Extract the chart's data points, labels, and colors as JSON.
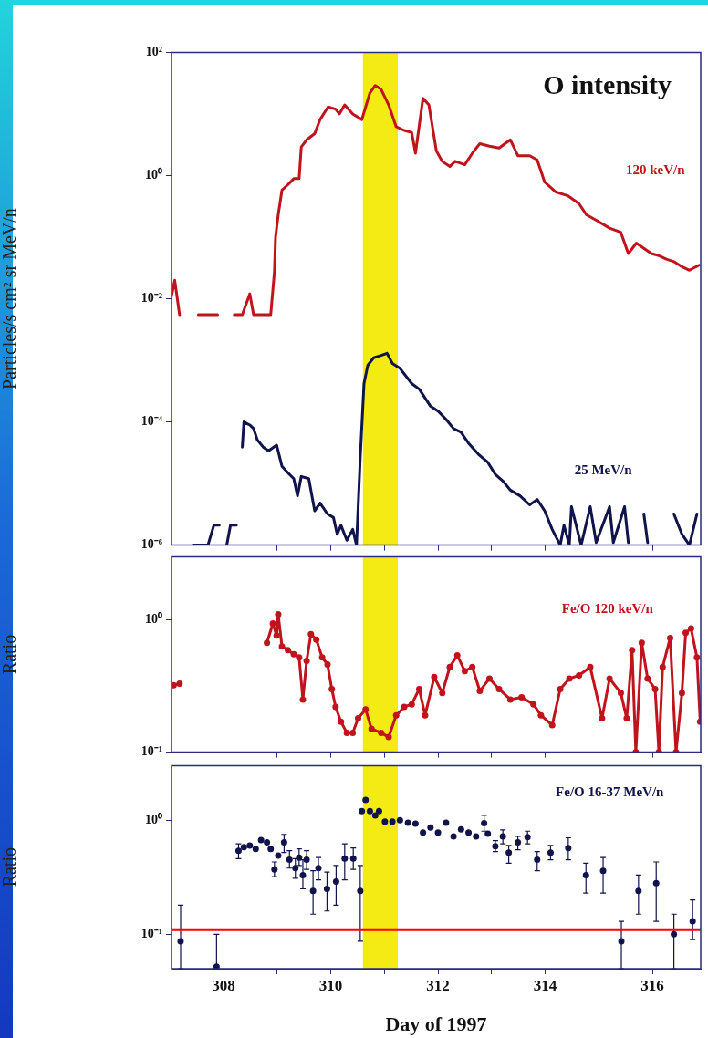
{
  "chart_data": [
    {
      "type": "line",
      "title": "O intensity",
      "ylabel": "Particles/s cm² sr MeV/n",
      "log": "y",
      "grid": false,
      "legend": false,
      "tick_labels": "y",
      "marker": "none",
      "xlim": [
        307.03,
        316.9
      ],
      "xticks": [
        308,
        {
          "value": 309,
          "label": null
        },
        310,
        {
          "value": 311,
          "label": null
        },
        312,
        {
          "value": 313,
          "label": null
        },
        314,
        {
          "value": 315,
          "label": null
        },
        316
      ],
      "ylim": [
        1e-06,
        100
      ],
      "yticks": [
        {
          "value": 100,
          "label": "10²"
        },
        {
          "value": 1,
          "label": "10⁰"
        },
        {
          "value": 0.01,
          "label": "10⁻²"
        },
        {
          "value": 0.0001,
          "label": "10⁻⁴"
        },
        {
          "value": 1e-06,
          "label": "10⁻⁶"
        }
      ],
      "bands": [
        {
          "axis": "x",
          "from": 310.6,
          "to": 311.25,
          "color": "#f5eb14"
        }
      ],
      "series": [
        {
          "name": "120 keV/n",
          "color": "#c0141c",
          "x": [
            307.03,
            307.09,
            307.18,
            307.35,
            307.53,
            307.89,
            308.05,
            308.2,
            308.35,
            308.49,
            308.56,
            308.88,
            308.95,
            308.97,
            309.02,
            309.09,
            309.2,
            309.31,
            309.41,
            309.45,
            309.55,
            309.7,
            309.8,
            309.95,
            310.09,
            310.16,
            310.26,
            310.41,
            310.58,
            310.73,
            310.83,
            310.94,
            311.08,
            311.22,
            311.37,
            311.51,
            311.58,
            311.72,
            311.83,
            311.97,
            312.08,
            312.22,
            312.32,
            312.5,
            312.64,
            312.78,
            312.96,
            313.14,
            313.35,
            313.49,
            313.71,
            313.85,
            313.99,
            314.2,
            314.42,
            314.63,
            314.77,
            314.99,
            315.2,
            315.41,
            315.55,
            315.7,
            315.84,
            315.98,
            316.12,
            316.26,
            316.4,
            316.55,
            316.69,
            316.87
          ],
          "values": [
            0.011,
            0.02,
            0.0055,
            null,
            0.0055,
            0.0055,
            null,
            0.0055,
            0.0055,
            0.012,
            0.0055,
            0.0055,
            0.028,
            0.1,
            0.23,
            0.58,
            0.71,
            0.89,
            0.89,
            2.9,
            3.8,
            4.8,
            8.1,
            13,
            12,
            10,
            14,
            10,
            8.1,
            22,
            29,
            25,
            14,
            6.2,
            5.4,
            5,
            2.3,
            18,
            14,
            2.5,
            1.7,
            1.4,
            1.7,
            1.5,
            2.3,
            3.3,
            3,
            2.8,
            3.8,
            2.1,
            2.1,
            1.8,
            0.78,
            0.54,
            0.47,
            0.35,
            0.23,
            0.18,
            0.14,
            0.12,
            0.054,
            0.08,
            0.066,
            0.054,
            0.05,
            0.044,
            0.04,
            0.033,
            0.029,
            0.035
          ]
        },
        {
          "name": "25 MeV/n",
          "color": "#10144a",
          "x": [
            307.43,
            307.71,
            307.82,
            307.92,
            308.0,
            308.06,
            308.13,
            308.24,
            308.3,
            308.35,
            308.38,
            308.49,
            308.56,
            308.63,
            308.74,
            308.84,
            308.99,
            309.09,
            309.2,
            309.31,
            309.38,
            309.45,
            309.59,
            309.7,
            309.8,
            309.94,
            310.05,
            310.12,
            310.19,
            310.3,
            310.41,
            310.48,
            310.55,
            310.62,
            310.69,
            310.8,
            310.94,
            311.05,
            311.15,
            311.29,
            311.51,
            311.65,
            311.86,
            312.0,
            312.15,
            312.29,
            312.43,
            312.57,
            312.75,
            312.93,
            313.07,
            313.21,
            313.35,
            313.53,
            313.71,
            313.85,
            313.99,
            314.13,
            314.28,
            314.35,
            314.45,
            314.49,
            314.67,
            314.84,
            314.95,
            315.2,
            315.27,
            315.48,
            315.55,
            315.7,
            315.84,
            315.91,
            316.2,
            316.4,
            316.55,
            316.69,
            316.83
          ],
          "values": [
            1e-06,
            1e-06,
            2.1e-06,
            2.1e-06,
            null,
            1e-06,
            2.1e-06,
            2.1e-06,
            null,
            3.9e-05,
            0.0001,
            8.9e-05,
            7.8e-05,
            5.1e-05,
            3.9e-05,
            3.4e-05,
            4.2e-05,
            1.9e-05,
            1.5e-05,
            1.2e-05,
            6.3e-06,
            1.3e-05,
            1.2e-05,
            3.6e-06,
            4.8e-06,
            3.2e-06,
            2.8e-06,
            1.5e-06,
            2.1e-06,
            1.2e-06,
            1.8e-06,
            1e-06,
            2.6e-05,
            0.00042,
            0.00083,
            0.0011,
            0.0012,
            0.0013,
            0.00089,
            0.00074,
            0.00042,
            0.00034,
            0.00018,
            0.00015,
            0.00011,
            7.8e-05,
            6.8e-05,
            4.5e-05,
            3e-05,
            2.2e-05,
            1.4e-05,
            1.1e-05,
            7.8e-06,
            6.3e-06,
            4.5e-06,
            5.5e-06,
            3.6e-06,
            1.8e-06,
            1e-06,
            2.1e-06,
            1e-06,
            4.2e-06,
            1e-06,
            4.2e-06,
            1.1e-06,
            4.2e-06,
            1.1e-06,
            4.2e-06,
            1.1e-06,
            null,
            3.2e-06,
            1.1e-06,
            null,
            3.2e-06,
            1.5e-06,
            1e-06,
            3.2e-06
          ]
        }
      ]
    },
    {
      "type": "line",
      "ylabel": "Ratio",
      "log": "y",
      "grid": false,
      "legend": false,
      "tick_labels": "y",
      "marker": "circle",
      "xlim": [
        307.03,
        316.9
      ],
      "xticks": [
        308,
        {
          "value": 309,
          "label": null
        },
        310,
        {
          "value": 311,
          "label": null
        },
        312,
        {
          "value": 313,
          "label": null
        },
        314,
        {
          "value": 315,
          "label": null
        },
        316
      ],
      "ylim": [
        0.1,
        3
      ],
      "yticks": [
        {
          "value": 1,
          "label": "10⁰"
        },
        {
          "value": 0.1,
          "label": "10⁻¹"
        }
      ],
      "bands": [
        {
          "axis": "x",
          "from": 310.6,
          "to": 311.25,
          "color": "#f5eb14"
        }
      ],
      "series": [
        {
          "name": "Fe/O 120 keV/n",
          "color": "#c0141c",
          "x": [
            307.07,
            307.18,
            308.0,
            308.81,
            308.92,
            308.99,
            309.02,
            309.09,
            309.2,
            309.31,
            309.41,
            309.48,
            309.55,
            309.63,
            309.73,
            309.84,
            309.94,
            310.02,
            310.09,
            310.19,
            310.3,
            310.41,
            310.51,
            310.65,
            310.76,
            310.94,
            311.08,
            311.22,
            311.37,
            311.51,
            311.65,
            311.76,
            311.93,
            312.08,
            312.22,
            312.36,
            312.5,
            312.64,
            312.78,
            312.96,
            313.14,
            313.35,
            313.56,
            313.78,
            313.92,
            314.13,
            314.28,
            314.45,
            314.63,
            314.84,
            315.06,
            315.2,
            315.41,
            315.52,
            315.62,
            315.69,
            315.8,
            315.91,
            316.05,
            316.12,
            316.19,
            316.33,
            316.44,
            316.55,
            316.62,
            316.72,
            316.83,
            316.89
          ],
          "values": [
            0.32,
            0.33,
            null,
            0.67,
            0.94,
            0.76,
            1.1,
            0.63,
            0.59,
            0.55,
            0.52,
            0.25,
            0.49,
            0.78,
            0.71,
            0.52,
            0.46,
            0.3,
            0.22,
            0.17,
            0.14,
            0.14,
            0.18,
            0.21,
            0.15,
            0.14,
            0.13,
            0.19,
            0.22,
            0.23,
            0.3,
            0.19,
            0.37,
            0.28,
            0.44,
            0.54,
            0.41,
            0.44,
            0.29,
            0.36,
            0.3,
            0.25,
            0.26,
            0.23,
            0.19,
            0.16,
            0.3,
            0.36,
            0.38,
            0.44,
            0.18,
            0.36,
            0.28,
            0.18,
            0.59,
            0.1,
            0.67,
            0.36,
            0.3,
            0.1,
            0.44,
            0.73,
            0.1,
            0.28,
            0.8,
            0.86,
            0.52,
            0.17
          ]
        }
      ]
    },
    {
      "type": "scatter",
      "ylabel": "Ratio",
      "xlabel": "Day of 1997",
      "log": "y",
      "grid": false,
      "legend": false,
      "marker": "circle",
      "xlim": [
        307.03,
        316.9
      ],
      "xticks": [
        308,
        {
          "value": 309,
          "label": null
        },
        310,
        {
          "value": 311,
          "label": null
        },
        312,
        {
          "value": 313,
          "label": null
        },
        314,
        {
          "value": 315,
          "label": null
        },
        316
      ],
      "ylim": [
        0.05,
        3
      ],
      "yticks": [
        {
          "value": 1,
          "label": "10⁰"
        },
        {
          "value": 0.1,
          "label": "10⁻¹"
        }
      ],
      "bands": [
        {
          "axis": "x",
          "from": 310.6,
          "to": 311.25,
          "color": "#f5eb14"
        }
      ],
      "ref_lines": [
        {
          "axis": "y",
          "value": 0.11,
          "color": "#ff0000"
        }
      ],
      "series": [
        {
          "name": "Fe/O 16-37 MeV/n",
          "color": "#10144a",
          "x": [
            307.2,
            307.87,
            308.28,
            308.38,
            308.49,
            308.6,
            308.7,
            308.81,
            308.88,
            308.95,
            309.02,
            309.13,
            309.23,
            309.34,
            309.41,
            309.48,
            309.55,
            309.67,
            309.77,
            309.93,
            310.1,
            310.26,
            310.42,
            310.55,
            310.58,
            310.65,
            310.73,
            310.83,
            310.9,
            311.01,
            311.15,
            311.29,
            311.44,
            311.58,
            311.72,
            311.86,
            312.0,
            312.15,
            312.29,
            312.43,
            312.57,
            312.71,
            312.86,
            312.93,
            313.07,
            313.21,
            313.32,
            313.49,
            313.67,
            313.85,
            314.1,
            314.43,
            314.76,
            315.08,
            315.42,
            315.74,
            316.07,
            316.4,
            316.75
          ],
          "values": [
            0.087,
            0.052,
            0.54,
            0.58,
            0.6,
            0.56,
            0.67,
            0.64,
            0.56,
            0.37,
            0.49,
            0.64,
            0.45,
            0.38,
            0.47,
            0.33,
            0.45,
            0.24,
            0.38,
            0.25,
            0.29,
            0.46,
            0.46,
            0.24,
            1.2,
            1.5,
            1.2,
            1.1,
            1.2,
            0.97,
            0.97,
            1.0,
            0.95,
            0.93,
            0.78,
            0.86,
            0.78,
            0.95,
            0.72,
            0.83,
            0.78,
            0.72,
            0.94,
            0.76,
            0.59,
            0.72,
            0.52,
            0.64,
            0.71,
            0.45,
            0.52,
            0.57,
            0.33,
            0.36,
            0.087,
            0.24,
            0.28,
            0.1,
            0.13
          ],
          "errors": [
            [
              0.05,
              0.18
            ],
            [
              0.05,
              0.1
            ],
            [
              0.46,
              0.62
            ],
            null,
            null,
            null,
            null,
            null,
            null,
            [
              0.32,
              0.43
            ],
            null,
            [
              0.52,
              0.75
            ],
            [
              0.38,
              0.54
            ],
            [
              0.31,
              0.46
            ],
            [
              0.4,
              0.56
            ],
            [
              0.25,
              0.45
            ],
            [
              0.37,
              0.54
            ],
            [
              0.15,
              0.36
            ],
            [
              0.3,
              0.47
            ],
            [
              0.16,
              0.35
            ],
            [
              0.18,
              0.4
            ],
            [
              0.3,
              0.62
            ],
            [
              0.37,
              0.57
            ],
            [
              0.087,
              0.4
            ],
            null,
            null,
            null,
            null,
            null,
            null,
            null,
            null,
            null,
            null,
            null,
            null,
            null,
            null,
            null,
            null,
            null,
            null,
            [
              0.8,
              1.1
            ],
            null,
            [
              0.53,
              0.66
            ],
            [
              0.62,
              0.82
            ],
            [
              0.42,
              0.6
            ],
            [
              0.55,
              0.72
            ],
            [
              0.62,
              0.8
            ],
            [
              0.36,
              0.53
            ],
            [
              0.45,
              0.6
            ],
            [
              0.45,
              0.7
            ],
            [
              0.23,
              0.42
            ],
            [
              0.23,
              0.47
            ],
            [
              0.05,
              0.13
            ],
            [
              0.15,
              0.33
            ],
            [
              0.13,
              0.43
            ],
            [
              0.05,
              0.15
            ],
            [
              0.09,
              0.2
            ]
          ]
        }
      ]
    }
  ]
}
